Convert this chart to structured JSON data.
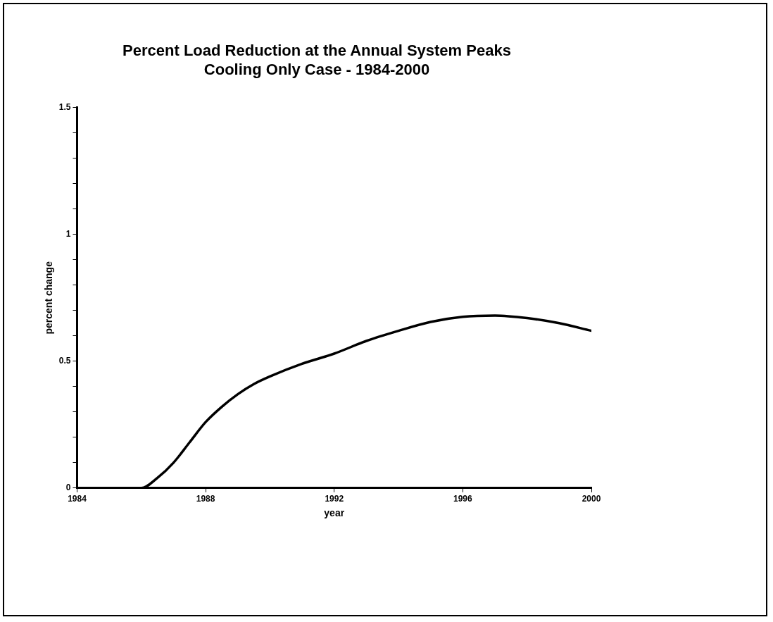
{
  "chart_data": {
    "type": "line",
    "title": "Percent Load Reduction at the Annual System Peaks",
    "subtitle": "Cooling Only Case - 1984-2000",
    "xlabel": "year",
    "ylabel": "percent change",
    "x": [
      1984,
      1985,
      1986,
      1986.5,
      1987,
      1987.5,
      1988,
      1988.5,
      1989,
      1989.5,
      1990,
      1991,
      1992,
      1993,
      1994,
      1995,
      1996,
      1997,
      1998,
      1999,
      2000
    ],
    "series": [
      {
        "color": "#000000",
        "values": [
          0,
          0,
          0,
          0.04,
          0.1,
          0.18,
          0.26,
          0.32,
          0.37,
          0.41,
          0.44,
          0.49,
          0.53,
          0.58,
          0.62,
          0.655,
          0.675,
          0.68,
          0.67,
          0.65,
          0.62
        ]
      }
    ],
    "xlim": [
      1984,
      2000
    ],
    "xticks": [
      1984,
      1988,
      1992,
      1996,
      2000
    ],
    "ylim": [
      0,
      1.5
    ],
    "yticks": [
      0,
      {
        "value": 0.1,
        "label": null
      },
      {
        "value": 0.2,
        "label": null
      },
      {
        "value": 0.3,
        "label": null
      },
      {
        "value": 0.4,
        "label": null
      },
      0.5,
      {
        "value": 0.6,
        "label": null
      },
      {
        "value": 0.7,
        "label": null
      },
      {
        "value": 0.8,
        "label": null
      },
      {
        "value": 0.9,
        "label": null
      },
      1,
      {
        "value": 1.1,
        "label": null
      },
      {
        "value": 1.2,
        "label": null
      },
      {
        "value": 1.3,
        "label": null
      },
      {
        "value": 1.4,
        "label": null
      },
      1.5
    ],
    "grid": false,
    "legend": false,
    "marker": "none",
    "line_style": "solid"
  }
}
